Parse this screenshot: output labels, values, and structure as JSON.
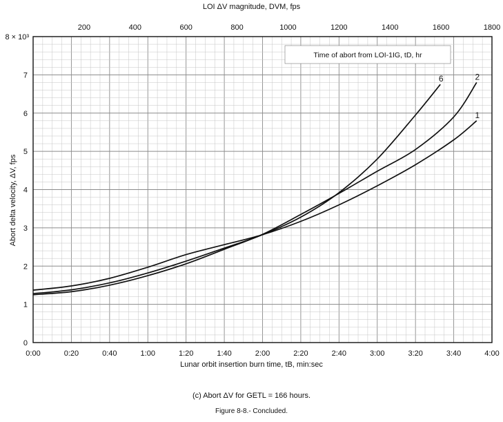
{
  "chart_data": {
    "type": "line",
    "top_axis_title": "LOI ΔV magnitude, DVM, fps",
    "top_axis_ticks": [
      "200",
      "400",
      "600",
      "800",
      "1000",
      "1200",
      "1400",
      "1600",
      "1800"
    ],
    "top_axis_values": [
      200,
      400,
      600,
      800,
      1000,
      1200,
      1400,
      1600,
      1800
    ],
    "top_axis_range": [
      0,
      1800
    ],
    "xlabel": "Lunar orbit insertion burn time, tB, min:sec",
    "x_ticks": [
      "0:00",
      "0:20",
      "0:40",
      "1:00",
      "1:20",
      "1:40",
      "2:00",
      "2:20",
      "2:40",
      "3:00",
      "3:20",
      "3:40",
      "4:00"
    ],
    "xlim_seconds": [
      0,
      240
    ],
    "ylabel": "Abort delta velocity, ΔV, fps",
    "y_ticks": [
      "0",
      "1",
      "2",
      "3",
      "4",
      "5",
      "6",
      "7"
    ],
    "y_top_label": "8 × 10³",
    "ylim": [
      0,
      8000
    ],
    "grid": true,
    "legend_title": "Time of abort from LOI-1IG, tD, hr",
    "series": [
      {
        "name": "6",
        "x_seconds": [
          0,
          20,
          40,
          60,
          80,
          100,
          120,
          140,
          160,
          180,
          200,
          213
        ],
        "y": [
          1280,
          1380,
          1560,
          1820,
          2130,
          2470,
          2820,
          3280,
          3920,
          4800,
          5950,
          6750
        ]
      },
      {
        "name": "2",
        "x_seconds": [
          0,
          20,
          40,
          60,
          80,
          100,
          120,
          140,
          160,
          180,
          200,
          220,
          232
        ],
        "y": [
          1250,
          1330,
          1500,
          1750,
          2060,
          2440,
          2830,
          3350,
          3900,
          4480,
          5050,
          5900,
          6800
        ]
      },
      {
        "name": "1",
        "x_seconds": [
          0,
          20,
          40,
          60,
          80,
          100,
          120,
          140,
          160,
          180,
          200,
          220,
          232
        ],
        "y": [
          1370,
          1480,
          1680,
          1970,
          2300,
          2560,
          2820,
          3170,
          3600,
          4100,
          4650,
          5300,
          5800
        ]
      }
    ]
  },
  "caption": "(c) Abort ΔV for GETL = 166 hours.",
  "figure_label": "Figure 8-8.- Concluded."
}
